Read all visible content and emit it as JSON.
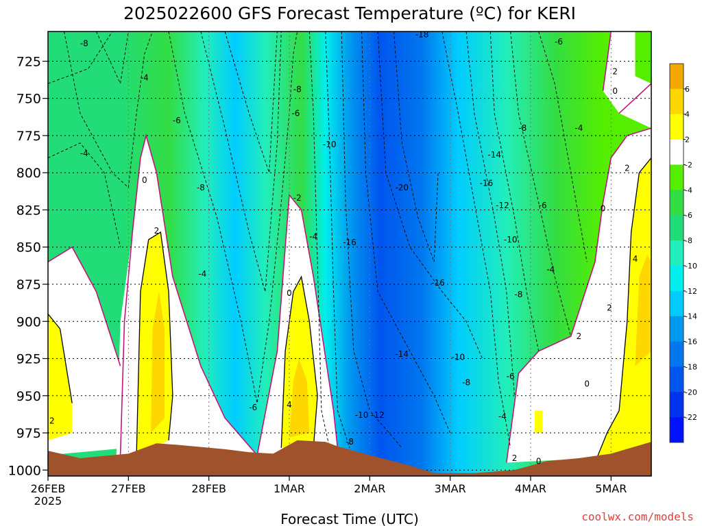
{
  "chart_data": {
    "type": "heatmap",
    "title": "2025022600 GFS Forecast Temperature (ºC) for KERI",
    "xlabel": "Forecast Time (UTC)",
    "ylabel": "",
    "x_ticks": [
      "26FEB",
      "27FEB",
      "28FEB",
      "1MAR",
      "2MAR",
      "3MAR",
      "4MAR",
      "5MAR"
    ],
    "x_year": "2025",
    "y_ticks": [
      725,
      750,
      775,
      800,
      825,
      850,
      875,
      900,
      925,
      950,
      975,
      1000
    ],
    "ylim": [
      1000,
      705
    ],
    "xlim_days": [
      0,
      7.5
    ],
    "grid": true,
    "colorbar": {
      "levels": [
        6,
        4,
        2,
        "-2",
        "-4",
        "-6",
        "-8",
        "-10",
        "-12",
        "-14",
        "-16",
        "-18",
        "-20",
        "-22"
      ],
      "colors": [
        "#f5a800",
        "#ffd700",
        "#ffff00",
        "#ffffff",
        "#55ee00",
        "#33dd44",
        "#22dd77",
        "#22eebb",
        "#00eeee",
        "#00ccff",
        "#0099ee",
        "#0077ee",
        "#0055ee",
        "#0033ee",
        "#0011ff"
      ]
    },
    "contour_labels": [
      {
        "t": 0.45,
        "p": 713,
        "v": "-8"
      },
      {
        "t": 1.2,
        "p": 736,
        "v": "-4"
      },
      {
        "t": 1.6,
        "p": 765,
        "v": "-6"
      },
      {
        "t": 0.45,
        "p": 787,
        "v": "-4"
      },
      {
        "t": 1.2,
        "p": 805,
        "v": "0"
      },
      {
        "t": 1.35,
        "p": 839,
        "v": "2"
      },
      {
        "t": 1.9,
        "p": 810,
        "v": "-8"
      },
      {
        "t": 1.92,
        "p": 868,
        "v": "-4"
      },
      {
        "t": 2.55,
        "p": 958,
        "v": "-6"
      },
      {
        "t": 3.1,
        "p": 744,
        "v": "-8"
      },
      {
        "t": 3.08,
        "p": 760,
        "v": "-6"
      },
      {
        "t": 3.1,
        "p": 817,
        "v": "-2"
      },
      {
        "t": 3.3,
        "p": 843,
        "v": "-4"
      },
      {
        "t": 3.0,
        "p": 881,
        "v": "0"
      },
      {
        "t": 3.0,
        "p": 956,
        "v": "4"
      },
      {
        "t": 3.5,
        "p": 781,
        "v": "-10"
      },
      {
        "t": 3.75,
        "p": 847,
        "v": "-16"
      },
      {
        "t": 4.4,
        "p": 810,
        "v": "-20"
      },
      {
        "t": 4.65,
        "p": 707,
        "v": "-18"
      },
      {
        "t": 4.85,
        "p": 874,
        "v": "-16"
      },
      {
        "t": 4.4,
        "p": 922,
        "v": "-14"
      },
      {
        "t": 3.9,
        "p": 963,
        "v": "-10"
      },
      {
        "t": 4.1,
        "p": 963,
        "v": "-12"
      },
      {
        "t": 3.75,
        "p": 981,
        "v": "-8"
      },
      {
        "t": 5.55,
        "p": 788,
        "v": "-14"
      },
      {
        "t": 5.45,
        "p": 807,
        "v": "-16"
      },
      {
        "t": 5.65,
        "p": 822,
        "v": "-12"
      },
      {
        "t": 5.75,
        "p": 845,
        "v": "-10"
      },
      {
        "t": 5.1,
        "p": 924,
        "v": "-10"
      },
      {
        "t": 5.2,
        "p": 941,
        "v": "-8"
      },
      {
        "t": 5.75,
        "p": 937,
        "v": "-6"
      },
      {
        "t": 5.65,
        "p": 964,
        "v": "-4"
      },
      {
        "t": 5.9,
        "p": 770,
        "v": "-8"
      },
      {
        "t": 5.85,
        "p": 882,
        "v": "-8"
      },
      {
        "t": 6.15,
        "p": 822,
        "v": "-6"
      },
      {
        "t": 6.35,
        "p": 712,
        "v": "-6"
      },
      {
        "t": 6.6,
        "p": 770,
        "v": "-4"
      },
      {
        "t": 6.25,
        "p": 865,
        "v": "-4"
      },
      {
        "t": 6.6,
        "p": 910,
        "v": "2"
      },
      {
        "t": 6.7,
        "p": 942,
        "v": "0"
      },
      {
        "t": 5.8,
        "p": 992,
        "v": "2"
      },
      {
        "t": 6.1,
        "p": 994,
        "v": "0"
      },
      {
        "t": 7.05,
        "p": 732,
        "v": "2"
      },
      {
        "t": 7.05,
        "p": 745,
        "v": "0"
      },
      {
        "t": 6.9,
        "p": 824,
        "v": "0"
      },
      {
        "t": 7.2,
        "p": 797,
        "v": "2"
      },
      {
        "t": 7.3,
        "p": 858,
        "v": "4"
      },
      {
        "t": 6.98,
        "p": 891,
        "v": "2"
      },
      {
        "t": 0.05,
        "p": 967,
        "v": "2"
      }
    ]
  },
  "credit": "coolwx.com/models"
}
